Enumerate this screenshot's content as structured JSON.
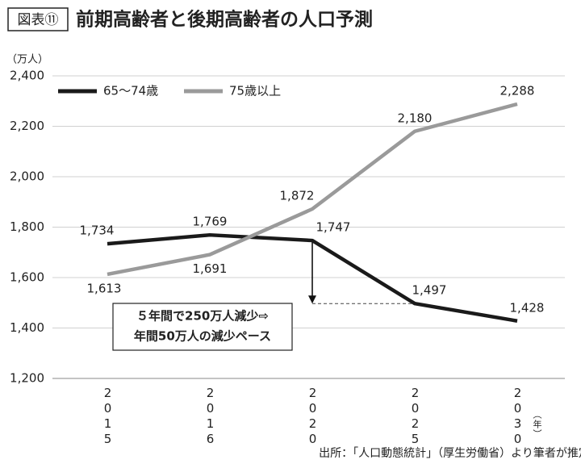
{
  "chart_data": {
    "type": "line",
    "tag": "図表⑪",
    "title": "前期高齢者と後期高齢者の人口予測",
    "y_unit": "（万人）",
    "x_unit": "（年）",
    "categories": [
      "2015",
      "2016",
      "2020",
      "2025",
      "2030"
    ],
    "series": [
      {
        "name": "65〜74歳",
        "color": "#1a1a1a",
        "values": [
          1734,
          1769,
          1747,
          1497,
          1428
        ],
        "value_labels": [
          "1,734",
          "1,769",
          "1,747",
          "1,497",
          "1,428"
        ]
      },
      {
        "name": "75歳以上",
        "color": "#9a9a9a",
        "values": [
          1613,
          1691,
          1872,
          2180,
          2288
        ],
        "value_labels": [
          "1,613",
          "1,691",
          "1,872",
          "2,180",
          "2,288"
        ]
      }
    ],
    "ylim": [
      1200,
      2400
    ],
    "yticks": [
      {
        "value": 1200,
        "label": "1,200"
      },
      {
        "value": 1400,
        "label": "1,400"
      },
      {
        "value": 1600,
        "label": "1,600"
      },
      {
        "value": 1800,
        "label": "1,800"
      },
      {
        "value": 2000,
        "label": "2,000"
      },
      {
        "value": 2200,
        "label": "2,200"
      },
      {
        "value": 2400,
        "label": "2,400"
      }
    ],
    "grid": true,
    "annotation": [
      "５年間で250万人減少⇨",
      "年間50万人の減少ペース"
    ],
    "source": "出所：「人口動態統計」（厚生労働省）より筆者が推定"
  }
}
